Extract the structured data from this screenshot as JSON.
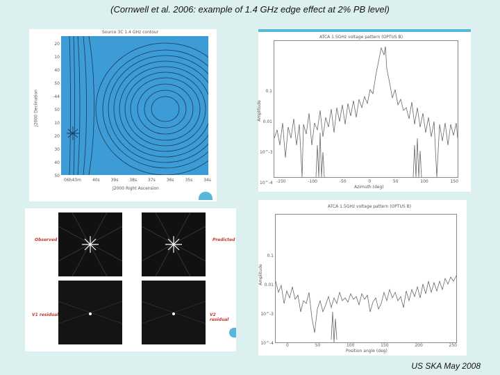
{
  "title": "(Cornwell et al. 2006: example of 1.4 GHz edge effect at 2% PB level)",
  "footer": "US SKA May 2008",
  "top_left": {
    "caption": "Source 3C 1.4 GHz contour",
    "x_axis_label": "J2000 Right Ascension",
    "y_axis_label": "J2000 Declination",
    "y_ticks": [
      "20",
      "10",
      "40",
      "50",
      "-44 50",
      "10",
      "20",
      "30",
      "40",
      "50"
    ],
    "x_ticks": [
      "06h43m",
      "40s",
      "39s",
      "38s",
      "37s",
      "36s",
      "35s",
      "34s"
    ]
  },
  "top_right": {
    "title": "ATCA 1.5GHz voltage pattern (OPTUS B)",
    "x_axis_label": "Azimuth (deg)",
    "y_axis_label": "Amplitude",
    "x_ticks": [
      "-150",
      "-100",
      "-50",
      "0",
      "50",
      "100",
      "150"
    ],
    "y_ticks": [
      "0.1",
      "0.01",
      "10^-3",
      "10^-4"
    ]
  },
  "bottom_left": {
    "labels": [
      "Observed",
      "Predicted",
      "V1 residual",
      "V2 residual"
    ]
  },
  "bottom_right": {
    "title": "ATCA 1.5GHz voltage pattern (OPTUS B)",
    "x_axis_label": "Position angle (deg)",
    "y_axis_label": "Amplitude",
    "x_ticks": [
      "0",
      "50",
      "100",
      "150",
      "200",
      "250"
    ],
    "y_ticks": [
      "0.1",
      "0.01",
      "10^-3",
      "10^-4"
    ]
  },
  "colors": {
    "background": "#ddf0f0",
    "contour_panel": "#3d9bd6",
    "contour_lines": "#1a3a5a",
    "plot_line": "#666666",
    "accent": "#58b6d8"
  }
}
